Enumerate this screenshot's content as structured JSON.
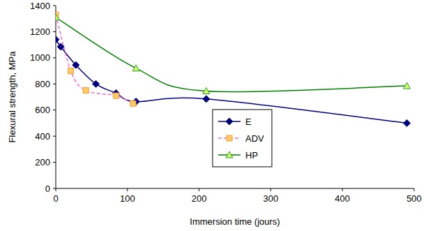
{
  "chart_data": {
    "type": "line",
    "x_label": "Immersion time (jours)",
    "y_label": "Flexural strength, MPa",
    "xlim": [
      0,
      500
    ],
    "xticks": [
      0,
      100,
      200,
      300,
      400,
      500
    ],
    "ylim": [
      0,
      1400
    ],
    "yticks": [
      0,
      200,
      400,
      600,
      800,
      1000,
      1200,
      1400
    ],
    "grid": false,
    "legend": "center",
    "series": [
      {
        "name": "E",
        "color": "#000080",
        "marker": "diamond",
        "line_style": "solid",
        "x": [
          0,
          7,
          28,
          56,
          84,
          112,
          210,
          490
        ],
        "values": [
          1140,
          1085,
          945,
          800,
          730,
          665,
          685,
          500
        ]
      },
      {
        "name": "ADV",
        "color": "#ff66cc",
        "marker": "square",
        "line_style": "dashed",
        "x": [
          0,
          21,
          42,
          84,
          108
        ],
        "values": [
          1330,
          900,
          750,
          710,
          650
        ]
      },
      {
        "name": "HP",
        "color": "#008000",
        "marker": "triangle",
        "line_style": "solid",
        "x": [
          0,
          112,
          210,
          490
        ],
        "values": [
          1310,
          920,
          745,
          785
        ]
      }
    ]
  }
}
